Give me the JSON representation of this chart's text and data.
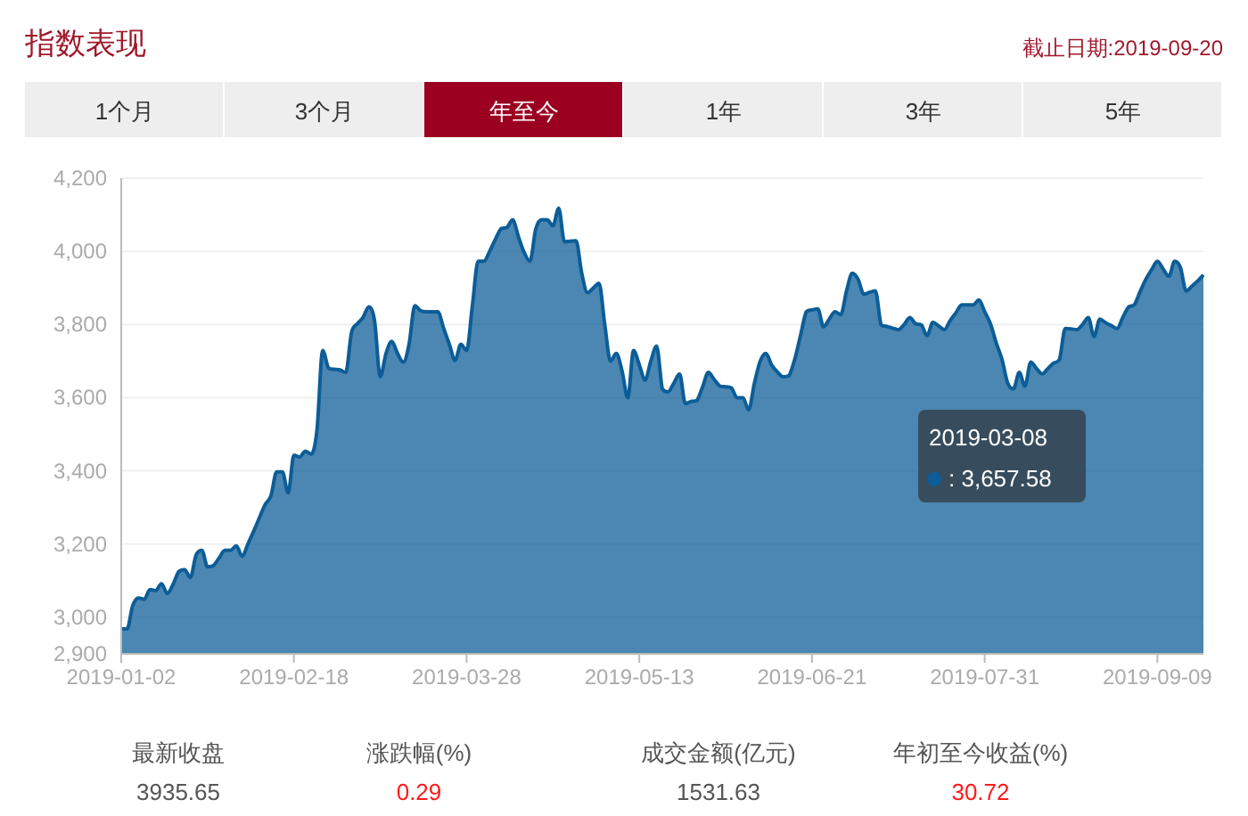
{
  "chart_data": {
    "type": "area",
    "title": "指数表现",
    "subtitle": "截止日期:2019-09-20",
    "annotations": [
      "1个月",
      "3个月",
      "年至今",
      "1年",
      "3年",
      "5年",
      "最新收盘",
      "3935.65",
      "涨跌幅(%)",
      "0.29",
      "成交金额(亿元)",
      "1531.63",
      "年初至今收益(%)",
      "30.72",
      "2019-03-08\n: 3,657.58"
    ],
    "categories": [
      "2019-01-02",
      null,
      null,
      null,
      null,
      null,
      null,
      null,
      null,
      null,
      null,
      null,
      null,
      null,
      null,
      null,
      null,
      null,
      null,
      null,
      null,
      null,
      null,
      null,
      null,
      null,
      null,
      null,
      null,
      null,
      "2019-02-18",
      null,
      null,
      null,
      null,
      null,
      null,
      null,
      null,
      null,
      null,
      null,
      null,
      null,
      null,
      null,
      null,
      null,
      null,
      null,
      null,
      null,
      null,
      null,
      null,
      null,
      null,
      null,
      null,
      null,
      "2019-03-28",
      null,
      null,
      null,
      null,
      null,
      null,
      null,
      null,
      null,
      null,
      null,
      null,
      null,
      null,
      null,
      null,
      null,
      null,
      null,
      null,
      null,
      null,
      null,
      null,
      null,
      null,
      null,
      null,
      null,
      "2019-05-13",
      null,
      null,
      null,
      null,
      null,
      null,
      null,
      null,
      null,
      null,
      null,
      null,
      null,
      null,
      null,
      null,
      null,
      null,
      null,
      null,
      null,
      null,
      null,
      null,
      null,
      null,
      null,
      null,
      null,
      "2019-06-21",
      null,
      null,
      null,
      null,
      null,
      null,
      null,
      null,
      null,
      null,
      null,
      null,
      null,
      null,
      null,
      null,
      null,
      null,
      null,
      null,
      null,
      null,
      null,
      null,
      null,
      null,
      null,
      null,
      null,
      "2019-07-31",
      null,
      null,
      null,
      null,
      null,
      null,
      null,
      null,
      null,
      null,
      null,
      null,
      null,
      null,
      null,
      null,
      null,
      null,
      null,
      null,
      null,
      null,
      null,
      null,
      null,
      null,
      null,
      null,
      null,
      "2019-09-09",
      null,
      null,
      null,
      null,
      null,
      null,
      null,
      null
    ],
    "series": [
      {
        "color": "#0c5d97",
        "values": [
          2968,
          2968,
          3032,
          3053,
          3049,
          3076,
          3073,
          3092,
          3065,
          3090,
          3125,
          3130,
          3109,
          3170,
          3183,
          3138,
          3141,
          3162,
          3183,
          3183,
          3195,
          3167,
          3200,
          3235,
          3272,
          3308,
          3332,
          3397,
          3397,
          3340,
          3443,
          3438,
          3454,
          3446,
          3511,
          3729,
          3681,
          3678,
          3676,
          3669,
          3778,
          3802,
          3819,
          3848,
          3811,
          3658,
          3721,
          3754,
          3721,
          3697,
          3746,
          3851,
          3838,
          3835,
          3835,
          3835,
          3790,
          3746,
          3702,
          3746,
          3729,
          3851,
          3973,
          3973,
          4000,
          4033,
          4062,
          4065,
          4086,
          4040,
          3997,
          3973,
          4060,
          4086,
          4086,
          4070,
          4118,
          4026,
          4028,
          4029,
          3940,
          3887,
          3900,
          3913,
          3800,
          3700,
          3721,
          3673,
          3600,
          3729,
          3690,
          3648,
          3700,
          3741,
          3624,
          3616,
          3640,
          3665,
          3584,
          3590,
          3592,
          3630,
          3669,
          3650,
          3632,
          3630,
          3627,
          3600,
          3600,
          3567,
          3640,
          3700,
          3721,
          3689,
          3670,
          3657,
          3660,
          3705,
          3770,
          3835,
          3840,
          3843,
          3794,
          3815,
          3835,
          3827,
          3892,
          3940,
          3924,
          3883,
          3888,
          3892,
          3799,
          3795,
          3790,
          3786,
          3800,
          3819,
          3802,
          3799,
          3770,
          3806,
          3796,
          3786,
          3811,
          3832,
          3854,
          3854,
          3854,
          3867,
          3835,
          3802,
          3750,
          3705,
          3640,
          3624,
          3669,
          3632,
          3697,
          3680,
          3665,
          3680,
          3695,
          3705,
          3789,
          3788,
          3786,
          3800,
          3819,
          3767,
          3815,
          3805,
          3797,
          3789,
          3820,
          3848,
          3854,
          3890,
          3924,
          3950,
          3973,
          3952,
          3932,
          3973,
          3956,
          3892,
          3905,
          3919,
          3935.65
        ]
      }
    ],
    "ylim": [
      2900,
      4200
    ],
    "yticks": [
      {
        "value": 2900,
        "label": "2,900"
      },
      {
        "value": 3000,
        "label": "3,000"
      },
      {
        "value": 3200,
        "label": "3,200"
      },
      {
        "value": 3400,
        "label": "3,400"
      },
      {
        "value": 3600,
        "label": "3,600"
      },
      {
        "value": 3800,
        "label": "3,800"
      },
      {
        "value": 4000,
        "label": "4,000"
      },
      {
        "value": 4200,
        "label": "4,200"
      }
    ],
    "grid": "y"
  }
}
